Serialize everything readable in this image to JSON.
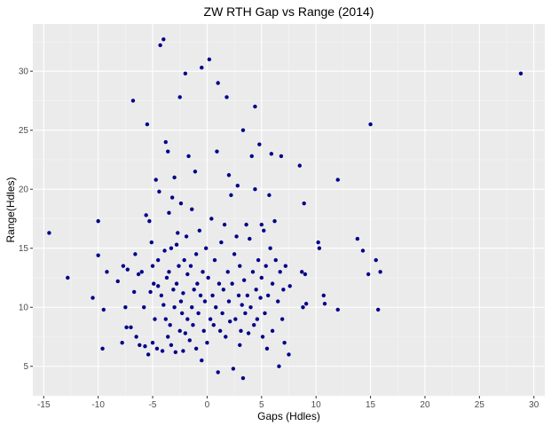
{
  "chart_data": {
    "type": "scatter",
    "title": "ZW RTH Gap vs Range (2014)",
    "xlabel": "Gaps (Hdles)",
    "ylabel": "Range(Hdles)",
    "xlim": [
      -16,
      31
    ],
    "ylim": [
      2.5,
      34
    ],
    "x_ticks": [
      -15,
      -10,
      -5,
      0,
      5,
      10,
      15,
      20,
      25,
      30
    ],
    "y_ticks": [
      5,
      10,
      15,
      20,
      25,
      30
    ],
    "grid": true,
    "legend": "none",
    "colors": {
      "panel": "#ebebeb",
      "grid_major": "#ffffff",
      "grid_minor": "#f5f5f5",
      "point": "#00008b",
      "tick": "#333333"
    },
    "points": [
      [
        -14.5,
        16.3
      ],
      [
        -12.8,
        12.5
      ],
      [
        -10.5,
        10.8
      ],
      [
        -10,
        17.3
      ],
      [
        -10,
        14.4
      ],
      [
        -9.6,
        6.5
      ],
      [
        -9.5,
        9.8
      ],
      [
        -9.2,
        13.0
      ],
      [
        -8.2,
        12.2
      ],
      [
        -7.8,
        7.0
      ],
      [
        -7.7,
        13.5
      ],
      [
        -7.5,
        10.0
      ],
      [
        -7.4,
        8.3
      ],
      [
        -7.3,
        13.2
      ],
      [
        -7.0,
        8.3
      ],
      [
        -6.8,
        27.5
      ],
      [
        -6.7,
        11.3
      ],
      [
        -6.6,
        14.5
      ],
      [
        -6.5,
        7.5
      ],
      [
        -6.3,
        12.8
      ],
      [
        -6.2,
        6.8
      ],
      [
        -6.0,
        13.0
      ],
      [
        -5.8,
        10.0
      ],
      [
        -5.7,
        6.7
      ],
      [
        -5.6,
        17.8
      ],
      [
        -5.5,
        25.5
      ],
      [
        -5.4,
        6.0
      ],
      [
        -5.3,
        17.3
      ],
      [
        -5.2,
        11.3
      ],
      [
        -5.1,
        15.5
      ],
      [
        -5.0,
        13.5
      ],
      [
        -5.0,
        7.0
      ],
      [
        -4.9,
        12.0
      ],
      [
        -4.8,
        9.0
      ],
      [
        -4.7,
        20.8
      ],
      [
        -4.6,
        6.5
      ],
      [
        -4.5,
        14.0
      ],
      [
        -4.5,
        11.8
      ],
      [
        -4.4,
        19.8
      ],
      [
        -4.3,
        32.2
      ],
      [
        -4.2,
        11.0
      ],
      [
        -4.1,
        6.3
      ],
      [
        -4.0,
        32.7
      ],
      [
        -4.0,
        10.2
      ],
      [
        -3.9,
        14.8
      ],
      [
        -3.8,
        24.0
      ],
      [
        -3.8,
        9.0
      ],
      [
        -3.7,
        12.5
      ],
      [
        -3.6,
        23.2
      ],
      [
        -3.6,
        7.5
      ],
      [
        -3.5,
        18.0
      ],
      [
        -3.5,
        13.0
      ],
      [
        -3.4,
        8.5
      ],
      [
        -3.3,
        6.8
      ],
      [
        -3.3,
        15.0
      ],
      [
        -3.2,
        19.3
      ],
      [
        -3.1,
        11.5
      ],
      [
        -3.0,
        21.0
      ],
      [
        -3.0,
        10.0
      ],
      [
        -2.9,
        6.2
      ],
      [
        -2.8,
        15.3
      ],
      [
        -2.8,
        12.0
      ],
      [
        -2.7,
        16.3
      ],
      [
        -2.6,
        13.5
      ],
      [
        -2.5,
        27.8
      ],
      [
        -2.5,
        8.0
      ],
      [
        -2.4,
        18.8
      ],
      [
        -2.4,
        10.5
      ],
      [
        -2.3,
        9.5
      ],
      [
        -2.2,
        11.2
      ],
      [
        -2.2,
        6.3
      ],
      [
        -2.1,
        14.0
      ],
      [
        -2.0,
        29.8
      ],
      [
        -2.0,
        7.8
      ],
      [
        -1.9,
        16.0
      ],
      [
        -1.8,
        12.8
      ],
      [
        -1.8,
        9.0
      ],
      [
        -1.7,
        22.8
      ],
      [
        -1.6,
        7.2
      ],
      [
        -1.5,
        13.5
      ],
      [
        -1.4,
        10.0
      ],
      [
        -1.4,
        18.3
      ],
      [
        -1.3,
        8.5
      ],
      [
        -1.2,
        11.5
      ],
      [
        -1.1,
        21.5
      ],
      [
        -1.0,
        14.5
      ],
      [
        -1.0,
        6.5
      ],
      [
        -0.9,
        12.0
      ],
      [
        -0.8,
        9.5
      ],
      [
        -0.7,
        16.5
      ],
      [
        -0.6,
        11.0
      ],
      [
        -0.5,
        5.5
      ],
      [
        -0.5,
        30.3
      ],
      [
        -0.4,
        13.0
      ],
      [
        -0.3,
        8.0
      ],
      [
        -0.2,
        10.5
      ],
      [
        -0.1,
        15.0
      ],
      [
        0.0,
        7.0
      ],
      [
        0.1,
        12.5
      ],
      [
        0.2,
        31.0
      ],
      [
        0.3,
        9.0
      ],
      [
        0.4,
        17.5
      ],
      [
        0.5,
        11.0
      ],
      [
        0.6,
        8.5
      ],
      [
        0.7,
        14.0
      ],
      [
        0.8,
        10.0
      ],
      [
        0.9,
        23.2
      ],
      [
        1.0,
        4.5
      ],
      [
        1.0,
        29.0
      ],
      [
        1.1,
        12.0
      ],
      [
        1.2,
        8.0
      ],
      [
        1.3,
        15.5
      ],
      [
        1.4,
        9.5
      ],
      [
        1.5,
        11.5
      ],
      [
        1.6,
        17.0
      ],
      [
        1.7,
        7.5
      ],
      [
        1.8,
        27.8
      ],
      [
        1.9,
        13.0
      ],
      [
        2.0,
        21.2
      ],
      [
        2.0,
        10.5
      ],
      [
        2.1,
        8.8
      ],
      [
        2.2,
        19.5
      ],
      [
        2.3,
        12.0
      ],
      [
        2.4,
        4.8
      ],
      [
        2.5,
        14.5
      ],
      [
        2.6,
        9.0
      ],
      [
        2.7,
        16.0
      ],
      [
        2.8,
        20.3
      ],
      [
        2.9,
        11.0
      ],
      [
        3.0,
        6.8
      ],
      [
        3.0,
        13.5
      ],
      [
        3.1,
        8.0
      ],
      [
        3.2,
        10.2
      ],
      [
        3.3,
        4.0
      ],
      [
        3.3,
        25.0
      ],
      [
        3.4,
        12.3
      ],
      [
        3.5,
        9.5
      ],
      [
        3.6,
        17.0
      ],
      [
        3.7,
        11.0
      ],
      [
        3.8,
        7.8
      ],
      [
        3.9,
        15.8
      ],
      [
        4.0,
        10.0
      ],
      [
        4.1,
        22.8
      ],
      [
        4.2,
        13.0
      ],
      [
        4.3,
        8.5
      ],
      [
        4.4,
        20.0
      ],
      [
        4.4,
        27.0
      ],
      [
        4.5,
        11.5
      ],
      [
        4.6,
        9.0
      ],
      [
        4.7,
        14.0
      ],
      [
        4.8,
        23.8
      ],
      [
        4.9,
        10.8
      ],
      [
        5.0,
        17.0
      ],
      [
        5.0,
        12.5
      ],
      [
        5.1,
        7.5
      ],
      [
        5.2,
        16.5
      ],
      [
        5.3,
        9.5
      ],
      [
        5.4,
        13.5
      ],
      [
        5.5,
        6.5
      ],
      [
        5.6,
        11.0
      ],
      [
        5.7,
        19.5
      ],
      [
        5.8,
        15.0
      ],
      [
        5.9,
        23.0
      ],
      [
        6.0,
        8.0
      ],
      [
        6.0,
        12.0
      ],
      [
        6.2,
        17.3
      ],
      [
        6.3,
        14.0
      ],
      [
        6.5,
        10.5
      ],
      [
        6.6,
        5.0
      ],
      [
        6.7,
        13.0
      ],
      [
        6.8,
        22.8
      ],
      [
        6.9,
        9.0
      ],
      [
        7.0,
        11.5
      ],
      [
        7.1,
        7.0
      ],
      [
        7.2,
        13.5
      ],
      [
        7.5,
        6.0
      ],
      [
        7.6,
        11.8
      ],
      [
        8.5,
        22.0
      ],
      [
        8.7,
        13.0
      ],
      [
        8.8,
        10.0
      ],
      [
        8.9,
        18.8
      ],
      [
        9.0,
        12.8
      ],
      [
        9.1,
        10.3
      ],
      [
        10.2,
        15.5
      ],
      [
        10.3,
        15.0
      ],
      [
        10.7,
        11.0
      ],
      [
        10.8,
        10.3
      ],
      [
        12.0,
        20.8
      ],
      [
        12.0,
        9.8
      ],
      [
        13.8,
        15.8
      ],
      [
        14.3,
        14.8
      ],
      [
        14.8,
        12.8
      ],
      [
        15.0,
        25.5
      ],
      [
        15.5,
        14.0
      ],
      [
        15.7,
        9.8
      ],
      [
        15.9,
        13.0
      ],
      [
        28.8,
        29.8
      ]
    ]
  }
}
